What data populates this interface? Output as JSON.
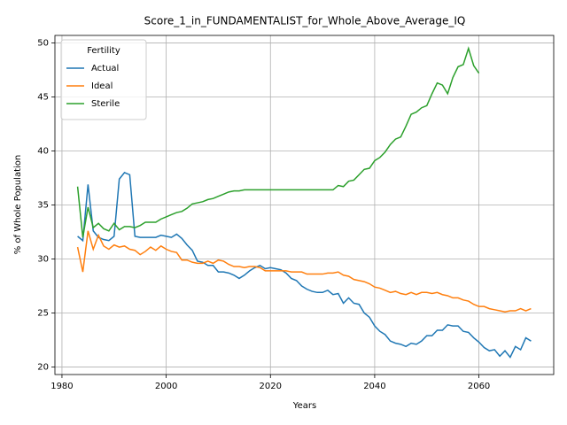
{
  "chart_data": {
    "type": "line",
    "title": "Score_1_in_FUNDAMENTALIST_for_Whole_Above_Average_IQ",
    "xlabel": "Years",
    "ylabel": "% of Whole Population",
    "legend_title": "Fertility",
    "legend_loc": "upper left",
    "grid": true,
    "xlim": [
      1978.65,
      2074.35
    ],
    "xticks": [
      1980,
      2000,
      2020,
      2040,
      2060
    ],
    "ylim": [
      19.3,
      50.7
    ],
    "yticks": [
      20,
      25,
      30,
      35,
      40,
      45,
      50
    ],
    "x": [
      1983,
      1984,
      1985,
      1986,
      1987,
      1988,
      1989,
      1990,
      1991,
      1992,
      1993,
      1994,
      1995,
      1996,
      1997,
      1998,
      1999,
      2000,
      2001,
      2002,
      2003,
      2004,
      2005,
      2006,
      2007,
      2008,
      2009,
      2010,
      2011,
      2012,
      2013,
      2014,
      2015,
      2016,
      2017,
      2018,
      2019,
      2020,
      2021,
      2022,
      2023,
      2024,
      2025,
      2026,
      2027,
      2028,
      2029,
      2030,
      2031,
      2032,
      2033,
      2034,
      2035,
      2036,
      2037,
      2038,
      2039,
      2040,
      2041,
      2042,
      2043,
      2044,
      2045,
      2046,
      2047,
      2048,
      2049,
      2050,
      2051,
      2052,
      2053,
      2054,
      2055,
      2056,
      2057,
      2058,
      2059,
      2060,
      2061,
      2062,
      2063,
      2064,
      2065,
      2066,
      2067,
      2068,
      2069,
      2070
    ],
    "series": [
      {
        "name": "Actual",
        "color": "#1f77b4",
        "values": [
          32.1,
          31.7,
          36.9,
          32.6,
          32.0,
          31.8,
          31.7,
          32.1,
          37.4,
          38.0,
          37.8,
          32.1,
          32.0,
          32.0,
          32.0,
          32.0,
          32.2,
          32.1,
          32.0,
          32.3,
          31.9,
          31.3,
          30.8,
          29.8,
          29.7,
          29.4,
          29.4,
          28.8,
          28.8,
          28.7,
          28.5,
          28.2,
          28.5,
          28.9,
          29.2,
          29.4,
          29.1,
          29.2,
          29.1,
          29.0,
          28.7,
          28.2,
          28.0,
          27.5,
          27.2,
          27.0,
          26.9,
          26.9,
          27.1,
          26.7,
          26.8,
          25.9,
          26.4,
          25.9,
          25.8,
          25.0,
          24.6,
          23.8,
          23.3,
          23.0,
          22.4,
          22.2,
          22.1,
          21.9,
          22.2,
          22.1,
          22.4,
          22.9,
          22.9,
          23.4,
          23.4,
          23.9,
          23.8,
          23.8,
          23.3,
          23.2,
          22.7,
          22.3,
          21.8,
          21.5,
          21.6,
          21.0,
          21.5,
          20.9,
          21.9,
          21.6,
          22.7,
          22.4
        ]
      },
      {
        "name": "Ideal",
        "color": "#ff7f0e",
        "values": [
          31.1,
          28.8,
          32.6,
          30.9,
          32.2,
          31.2,
          30.9,
          31.3,
          31.1,
          31.2,
          30.9,
          30.8,
          30.4,
          30.7,
          31.1,
          30.8,
          31.2,
          30.9,
          30.7,
          30.6,
          29.9,
          29.9,
          29.7,
          29.6,
          29.6,
          29.8,
          29.6,
          29.9,
          29.8,
          29.5,
          29.3,
          29.3,
          29.2,
          29.3,
          29.3,
          29.2,
          28.9,
          28.9,
          28.9,
          28.9,
          28.9,
          28.8,
          28.8,
          28.8,
          28.6,
          28.6,
          28.6,
          28.6,
          28.7,
          28.7,
          28.8,
          28.5,
          28.4,
          28.1,
          28.0,
          27.9,
          27.7,
          27.4,
          27.3,
          27.1,
          26.9,
          27.0,
          26.8,
          26.7,
          26.9,
          26.7,
          26.9,
          26.9,
          26.8,
          26.9,
          26.7,
          26.6,
          26.4,
          26.4,
          26.2,
          26.1,
          25.8,
          25.6,
          25.6,
          25.4,
          25.3,
          25.2,
          25.1,
          25.2,
          25.2,
          25.4,
          25.2,
          25.4
        ]
      },
      {
        "name": "Sterile",
        "color": "#2ca02c",
        "values": [
          36.7,
          32.0,
          34.8,
          32.9,
          33.3,
          32.8,
          32.6,
          33.3,
          32.7,
          33.0,
          33.0,
          32.9,
          33.1,
          33.4,
          33.4,
          33.4,
          33.7,
          33.9,
          34.1,
          34.3,
          34.4,
          34.7,
          35.1,
          35.2,
          35.3,
          35.5,
          35.6,
          35.8,
          36.0,
          36.2,
          36.3,
          36.3,
          36.4,
          36.4,
          36.4,
          36.4,
          36.4,
          36.4,
          36.4,
          36.4,
          36.4,
          36.4,
          36.4,
          36.4,
          36.4,
          36.4,
          36.4,
          36.4,
          36.4,
          36.4,
          36.8,
          36.7,
          37.2,
          37.3,
          37.8,
          38.3,
          38.4,
          39.1,
          39.4,
          39.9,
          40.6,
          41.1,
          41.3,
          42.3,
          43.4,
          43.6,
          44.0,
          44.2,
          45.3,
          46.3,
          46.1,
          45.3,
          46.8,
          47.8,
          48.0,
          49.5,
          47.9,
          47.2,
          null,
          null,
          null,
          null,
          null,
          null,
          null,
          null,
          null,
          null
        ]
      }
    ]
  }
}
